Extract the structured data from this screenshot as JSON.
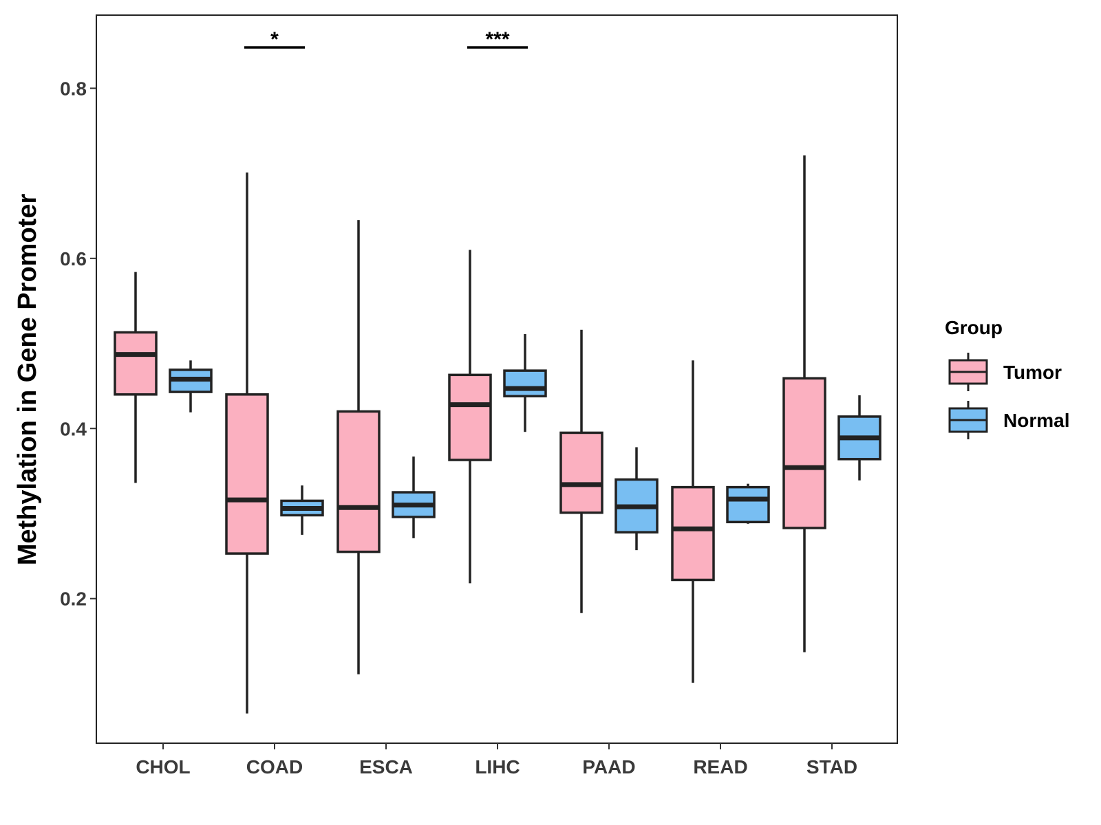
{
  "chart_data": {
    "type": "boxplot",
    "title": "",
    "xlabel": "",
    "ylabel": "Methylation in Gene Promoter",
    "ylim": [
      0.03,
      0.886
    ],
    "yticks": [
      0.2,
      0.4,
      0.6,
      0.8
    ],
    "ytick_labels": [
      "0.2",
      "0.4",
      "0.6",
      "0.8"
    ],
    "grid": false,
    "legend_position": "right",
    "legend_title": "Group",
    "categories": [
      "CHOL",
      "COAD",
      "ESCA",
      "LIHC",
      "PAAD",
      "READ",
      "STAD"
    ],
    "series": [
      {
        "name": "Tumor",
        "color": "#fbb0c0",
        "boxes": [
          {
            "whisker_low": 0.336,
            "q1": 0.44,
            "median": 0.487,
            "q3": 0.513,
            "whisker_high": 0.584
          },
          {
            "whisker_low": 0.065,
            "q1": 0.253,
            "median": 0.316,
            "q3": 0.44,
            "whisker_high": 0.701
          },
          {
            "whisker_low": 0.111,
            "q1": 0.255,
            "median": 0.307,
            "q3": 0.42,
            "whisker_high": 0.645
          },
          {
            "whisker_low": 0.218,
            "q1": 0.363,
            "median": 0.428,
            "q3": 0.463,
            "whisker_high": 0.61
          },
          {
            "whisker_low": 0.183,
            "q1": 0.301,
            "median": 0.334,
            "q3": 0.395,
            "whisker_high": 0.516
          },
          {
            "whisker_low": 0.101,
            "q1": 0.222,
            "median": 0.282,
            "q3": 0.331,
            "whisker_high": 0.48
          },
          {
            "whisker_low": 0.137,
            "q1": 0.283,
            "median": 0.354,
            "q3": 0.459,
            "whisker_high": 0.721
          }
        ]
      },
      {
        "name": "Normal",
        "color": "#78bef2",
        "boxes": [
          {
            "whisker_low": 0.419,
            "q1": 0.443,
            "median": 0.458,
            "q3": 0.469,
            "whisker_high": 0.48
          },
          {
            "whisker_low": 0.275,
            "q1": 0.298,
            "median": 0.306,
            "q3": 0.315,
            "whisker_high": 0.333
          },
          {
            "whisker_low": 0.271,
            "q1": 0.296,
            "median": 0.31,
            "q3": 0.325,
            "whisker_high": 0.367
          },
          {
            "whisker_low": 0.396,
            "q1": 0.438,
            "median": 0.447,
            "q3": 0.468,
            "whisker_high": 0.511
          },
          {
            "whisker_low": 0.257,
            "q1": 0.278,
            "median": 0.308,
            "q3": 0.34,
            "whisker_high": 0.378
          },
          {
            "whisker_low": 0.288,
            "q1": 0.29,
            "median": 0.317,
            "q3": 0.331,
            "whisker_high": 0.335
          },
          {
            "whisker_low": 0.339,
            "q1": 0.364,
            "median": 0.389,
            "q3": 0.414,
            "whisker_high": 0.439
          }
        ]
      }
    ],
    "annotations": [
      {
        "category": "COAD",
        "text": "*",
        "y": 0.848
      },
      {
        "category": "LIHC",
        "text": "***",
        "y": 0.848
      }
    ]
  }
}
